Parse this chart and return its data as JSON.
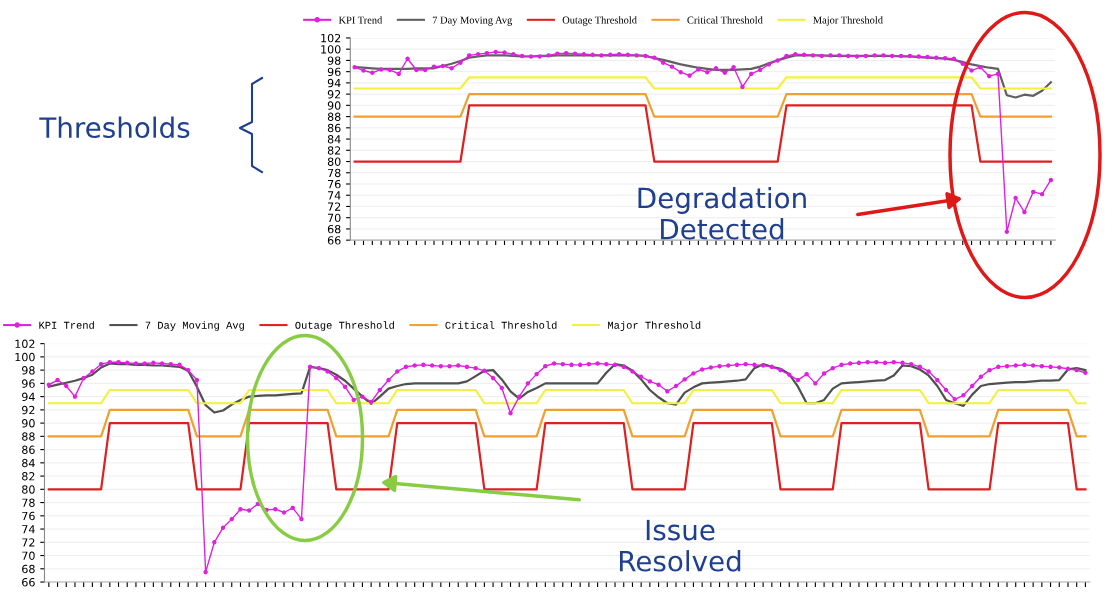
{
  "chart_data": [
    {
      "type": "line",
      "ylim": [
        66,
        102
      ],
      "yticks": [
        66,
        68,
        70,
        72,
        74,
        76,
        78,
        80,
        82,
        84,
        86,
        88,
        90,
        92,
        94,
        96,
        98,
        100,
        102
      ],
      "tick_labels": "y",
      "grid": "y",
      "legend": "top left",
      "categories": [
        null,
        null,
        null,
        null,
        null,
        null,
        null,
        null,
        null,
        null,
        null,
        null,
        null,
        null,
        null,
        null,
        null,
        null,
        null,
        null,
        null,
        null,
        null,
        null,
        null,
        null,
        null,
        null,
        null,
        null,
        null,
        null,
        null,
        null,
        null,
        null,
        null,
        null,
        null,
        null,
        null,
        null,
        null,
        null,
        null,
        null,
        null,
        null,
        null,
        null,
        null,
        null,
        null,
        null,
        null,
        null,
        null,
        null,
        null,
        null,
        null,
        null,
        null,
        null,
        null,
        null,
        null,
        null,
        null,
        null,
        null,
        null,
        null,
        null,
        null,
        null,
        null,
        null,
        null,
        null
      ],
      "annotations": [
        "Thresholds",
        "Degradation\nDetected"
      ],
      "series": [
        {
          "name": "KPI Trend",
          "color": "#e020e0",
          "marker": "circle",
          "values": [
            96.8,
            96.2,
            95.8,
            96.4,
            96.3,
            95.6,
            98.3,
            96.3,
            96.3,
            96.9,
            97.0,
            96.6,
            97.6,
            98.9,
            99.1,
            99.3,
            99.5,
            99.4,
            99.1,
            98.8,
            98.7,
            98.7,
            98.9,
            99.2,
            99.3,
            99.2,
            99.1,
            99.0,
            98.9,
            99.0,
            99.1,
            99.0,
            98.9,
            98.8,
            98.5,
            97.6,
            96.9,
            95.9,
            95.3,
            96.4,
            95.9,
            96.6,
            95.8,
            96.8,
            93.3,
            95.6,
            96.3,
            97.3,
            98.0,
            98.8,
            99.1,
            99.0,
            98.9,
            98.8,
            98.9,
            98.9,
            98.8,
            98.7,
            98.8,
            98.9,
            98.9,
            98.8,
            98.8,
            98.8,
            98.7,
            98.6,
            98.5,
            98.4,
            98.3,
            97.4,
            96.2,
            96.8,
            95.2,
            95.6,
            67.5,
            73.5,
            71.0,
            74.6,
            74.2,
            76.7
          ]
        },
        {
          "name": "7 Day Moving Avg",
          "color": "#606060",
          "values": [
            96.8,
            96.7,
            96.6,
            96.5,
            96.5,
            96.5,
            96.5,
            96.6,
            96.6,
            96.6,
            97.0,
            97.4,
            97.9,
            98.5,
            98.7,
            98.9,
            98.9,
            98.9,
            98.8,
            98.7,
            98.7,
            98.8,
            98.8,
            98.9,
            98.9,
            98.9,
            98.9,
            98.9,
            98.9,
            98.9,
            98.9,
            98.9,
            98.9,
            98.8,
            98.4,
            98.1,
            97.7,
            97.3,
            97.0,
            96.7,
            96.5,
            96.3,
            96.3,
            96.3,
            96.4,
            96.5,
            96.9,
            97.5,
            98.0,
            98.5,
            98.9,
            98.9,
            98.9,
            98.9,
            98.8,
            98.8,
            98.8,
            98.8,
            98.8,
            98.8,
            98.8,
            98.8,
            98.7,
            98.7,
            98.6,
            98.5,
            98.4,
            98.3,
            98.1,
            97.7,
            97.3,
            97.0,
            96.7,
            96.5,
            91.8,
            91.4,
            91.9,
            91.7,
            92.6,
            94.1
          ]
        },
        {
          "name": "Outage Threshold",
          "color": "#e02020",
          "values": [
            80,
            80,
            80,
            80,
            80,
            80,
            80,
            80,
            80,
            80,
            80,
            80,
            80,
            90,
            90,
            90,
            90,
            90,
            90,
            90,
            90,
            90,
            90,
            90,
            90,
            90,
            90,
            90,
            90,
            90,
            90,
            90,
            90,
            90,
            80,
            80,
            80,
            80,
            80,
            80,
            80,
            80,
            80,
            80,
            80,
            80,
            80,
            80,
            80,
            90,
            90,
            90,
            90,
            90,
            90,
            90,
            90,
            90,
            90,
            90,
            90,
            90,
            90,
            90,
            90,
            90,
            90,
            90,
            90,
            90,
            90,
            80,
            80,
            80,
            80,
            80,
            80,
            80,
            80,
            80
          ]
        },
        {
          "name": "Critical Threshold",
          "color": "#f0a030",
          "values": [
            88,
            88,
            88,
            88,
            88,
            88,
            88,
            88,
            88,
            88,
            88,
            88,
            88,
            92,
            92,
            92,
            92,
            92,
            92,
            92,
            92,
            92,
            92,
            92,
            92,
            92,
            92,
            92,
            92,
            92,
            92,
            92,
            92,
            92,
            88,
            88,
            88,
            88,
            88,
            88,
            88,
            88,
            88,
            88,
            88,
            88,
            88,
            88,
            88,
            92,
            92,
            92,
            92,
            92,
            92,
            92,
            92,
            92,
            92,
            92,
            92,
            92,
            92,
            92,
            92,
            92,
            92,
            92,
            92,
            92,
            92,
            88,
            88,
            88,
            88,
            88,
            88,
            88,
            88,
            88
          ]
        },
        {
          "name": "Major Threshold",
          "color": "#f2f040",
          "values": [
            93,
            93,
            93,
            93,
            93,
            93,
            93,
            93,
            93,
            93,
            93,
            93,
            93,
            95,
            95,
            95,
            95,
            95,
            95,
            95,
            95,
            95,
            95,
            95,
            95,
            95,
            95,
            95,
            95,
            95,
            95,
            95,
            95,
            95,
            93,
            93,
            93,
            93,
            93,
            93,
            93,
            93,
            93,
            93,
            93,
            93,
            93,
            93,
            93,
            95,
            95,
            95,
            95,
            95,
            95,
            95,
            95,
            95,
            95,
            95,
            95,
            95,
            95,
            95,
            95,
            95,
            95,
            95,
            95,
            95,
            95,
            93,
            93,
            93,
            93,
            93,
            93,
            93,
            93,
            93
          ]
        }
      ]
    },
    {
      "type": "line",
      "ylim": [
        66,
        102
      ],
      "yticks": [
        66,
        68,
        70,
        72,
        74,
        76,
        78,
        80,
        82,
        84,
        86,
        88,
        90,
        92,
        94,
        96,
        98,
        100,
        102
      ],
      "tick_labels": "y",
      "grid": "y",
      "legend": "top left",
      "categories": [
        null,
        null,
        null,
        null,
        null,
        null,
        null,
        null,
        null,
        null,
        null,
        null,
        null,
        null,
        null,
        null,
        null,
        null,
        null,
        null,
        null,
        null,
        null,
        null,
        null,
        null,
        null,
        null,
        null,
        null,
        null,
        null,
        null,
        null,
        null,
        null,
        null,
        null,
        null,
        null,
        null,
        null,
        null,
        null,
        null,
        null,
        null,
        null,
        null,
        null,
        null,
        null,
        null,
        null,
        null,
        null,
        null,
        null,
        null,
        null,
        null,
        null,
        null,
        null,
        null,
        null,
        null,
        null,
        null,
        null,
        null,
        null,
        null,
        null,
        null,
        null,
        null,
        null,
        null,
        null,
        null,
        null,
        null,
        null,
        null,
        null,
        null,
        null,
        null,
        null,
        null,
        null,
        null,
        null,
        null,
        null,
        null,
        null,
        null,
        null,
        null,
        null,
        null,
        null,
        null,
        null,
        null,
        null,
        null,
        null,
        null,
        null,
        null,
        null,
        null,
        null,
        null,
        null,
        null,
        null
      ],
      "annotations": [
        "Issue\nResolved"
      ],
      "series": [
        {
          "name": "KPI Trend",
          "color": "#e020e0",
          "marker": "circle",
          "values": [
            95.8,
            96.5,
            95.6,
            94.0,
            96.8,
            97.8,
            98.9,
            99.2,
            99.2,
            99.1,
            99.0,
            99.0,
            99.1,
            99.0,
            98.9,
            98.8,
            98.0,
            96.5,
            67.5,
            72.0,
            74.2,
            75.5,
            77.0,
            76.8,
            77.8,
            76.9,
            77.0,
            76.5,
            77.2,
            75.5,
            98.5,
            98.3,
            97.8,
            96.8,
            95.5,
            93.5,
            94.0,
            93.2,
            95.0,
            96.5,
            97.8,
            98.5,
            98.7,
            98.8,
            98.7,
            98.6,
            98.6,
            98.7,
            98.5,
            98.3,
            97.9,
            96.8,
            95.3,
            91.5,
            94.0,
            96.0,
            97.4,
            98.6,
            99.0,
            98.9,
            98.8,
            98.8,
            98.9,
            99.0,
            98.9,
            98.8,
            98.5,
            97.8,
            97.0,
            96.3,
            95.8,
            94.8,
            95.6,
            96.6,
            97.5,
            98.1,
            98.4,
            98.6,
            98.7,
            98.8,
            98.9,
            98.8,
            98.7,
            98.5,
            98.0,
            97.3,
            96.5,
            97.4,
            96.0,
            97.5,
            98.3,
            98.8,
            99.0,
            99.1,
            99.2,
            99.2,
            99.1,
            99.2,
            99.1,
            98.9,
            98.5,
            97.8,
            96.5,
            95.0,
            93.6,
            94.2,
            95.6,
            97.0,
            98.0,
            98.5,
            98.6,
            98.7,
            98.8,
            98.7,
            98.6,
            98.5,
            98.4,
            98.2,
            98.0,
            97.6
          ]
        },
        {
          "name": "7 Day Moving Avg",
          "color": "#505050",
          "values": [
            95.5,
            95.8,
            96.1,
            96.4,
            96.8,
            97.3,
            98.4,
            99.0,
            98.9,
            98.9,
            98.8,
            98.8,
            98.7,
            98.7,
            98.6,
            98.5,
            97.9,
            95.5,
            92.7,
            91.6,
            91.9,
            92.8,
            93.5,
            94.0,
            94.1,
            94.2,
            94.2,
            94.3,
            94.4,
            94.5,
            98.5,
            98.3,
            98.0,
            97.3,
            96.4,
            95.2,
            94.0,
            92.9,
            94.0,
            95.2,
            95.6,
            95.9,
            96.0,
            96.0,
            96.0,
            96.0,
            96.0,
            96.0,
            96.3,
            97.1,
            97.9,
            98.0,
            96.6,
            94.8,
            93.7,
            94.7,
            95.3,
            96.0,
            96.0,
            96.0,
            96.0,
            96.0,
            96.0,
            96.0,
            97.6,
            98.9,
            98.7,
            97.9,
            96.6,
            95.0,
            93.9,
            93.0,
            92.8,
            94.6,
            95.4,
            96.0,
            96.1,
            96.2,
            96.3,
            96.4,
            96.6,
            98.3,
            98.9,
            98.5,
            98.2,
            97.4,
            95.5,
            93.0,
            93.0,
            93.5,
            95.2,
            96.0,
            96.1,
            96.2,
            96.3,
            96.4,
            96.5,
            97.2,
            98.7,
            98.6,
            98.1,
            97.2,
            95.6,
            93.5,
            93.0,
            92.6,
            94.3,
            95.6,
            95.9,
            96.0,
            96.1,
            96.2,
            96.2,
            96.3,
            96.4,
            96.4,
            96.5,
            98.1,
            98.3,
            98.0
          ]
        },
        {
          "name": "Outage Threshold",
          "color": "#e02020",
          "values": [
            80,
            80,
            80,
            80,
            80,
            80,
            80,
            90,
            90,
            90,
            90,
            90,
            90,
            90,
            90,
            90,
            90,
            80,
            80,
            80,
            80,
            80,
            80,
            90,
            90,
            90,
            90,
            90,
            90,
            90,
            90,
            90,
            90,
            80,
            80,
            80,
            80,
            80,
            80,
            80,
            90,
            90,
            90,
            90,
            90,
            90,
            90,
            90,
            90,
            90,
            80,
            80,
            80,
            80,
            80,
            80,
            80,
            90,
            90,
            90,
            90,
            90,
            90,
            90,
            90,
            90,
            90,
            80,
            80,
            80,
            80,
            80,
            80,
            80,
            90,
            90,
            90,
            90,
            90,
            90,
            90,
            90,
            90,
            90,
            80,
            80,
            80,
            80,
            80,
            80,
            80,
            90,
            90,
            90,
            90,
            90,
            90,
            90,
            90,
            90,
            90,
            80,
            80,
            80,
            80,
            80,
            80,
            80,
            80,
            90,
            90,
            90,
            90,
            90,
            90,
            90,
            90,
            90,
            80,
            80
          ]
        },
        {
          "name": "Critical Threshold",
          "color": "#f0a030",
          "values": [
            88,
            88,
            88,
            88,
            88,
            88,
            88,
            92,
            92,
            92,
            92,
            92,
            92,
            92,
            92,
            92,
            92,
            88,
            88,
            88,
            88,
            88,
            88,
            92,
            92,
            92,
            92,
            92,
            92,
            92,
            92,
            92,
            92,
            88,
            88,
            88,
            88,
            88,
            88,
            88,
            92,
            92,
            92,
            92,
            92,
            92,
            92,
            92,
            92,
            92,
            88,
            88,
            88,
            88,
            88,
            88,
            88,
            92,
            92,
            92,
            92,
            92,
            92,
            92,
            92,
            92,
            92,
            88,
            88,
            88,
            88,
            88,
            88,
            88,
            92,
            92,
            92,
            92,
            92,
            92,
            92,
            92,
            92,
            92,
            88,
            88,
            88,
            88,
            88,
            88,
            88,
            92,
            92,
            92,
            92,
            92,
            92,
            92,
            92,
            92,
            92,
            88,
            88,
            88,
            88,
            88,
            88,
            88,
            88,
            92,
            92,
            92,
            92,
            92,
            92,
            92,
            92,
            92,
            88,
            88
          ]
        },
        {
          "name": "Major Threshold",
          "color": "#f2f040",
          "values": [
            93,
            93,
            93,
            93,
            93,
            93,
            93,
            95,
            95,
            95,
            95,
            95,
            95,
            95,
            95,
            95,
            95,
            93,
            93,
            93,
            93,
            93,
            93,
            95,
            95,
            95,
            95,
            95,
            95,
            95,
            95,
            95,
            95,
            93,
            93,
            93,
            93,
            93,
            93,
            93,
            95,
            95,
            95,
            95,
            95,
            95,
            95,
            95,
            95,
            95,
            93,
            93,
            93,
            93,
            93,
            93,
            93,
            95,
            95,
            95,
            95,
            95,
            95,
            95,
            95,
            95,
            95,
            93,
            93,
            93,
            93,
            93,
            93,
            93,
            95,
            95,
            95,
            95,
            95,
            95,
            95,
            95,
            95,
            95,
            93,
            93,
            93,
            93,
            93,
            93,
            93,
            95,
            95,
            95,
            95,
            95,
            95,
            95,
            95,
            95,
            95,
            93,
            93,
            93,
            93,
            93,
            93,
            93,
            93,
            95,
            95,
            95,
            95,
            95,
            95,
            95,
            95,
            95,
            93,
            93
          ]
        }
      ]
    }
  ]
}
